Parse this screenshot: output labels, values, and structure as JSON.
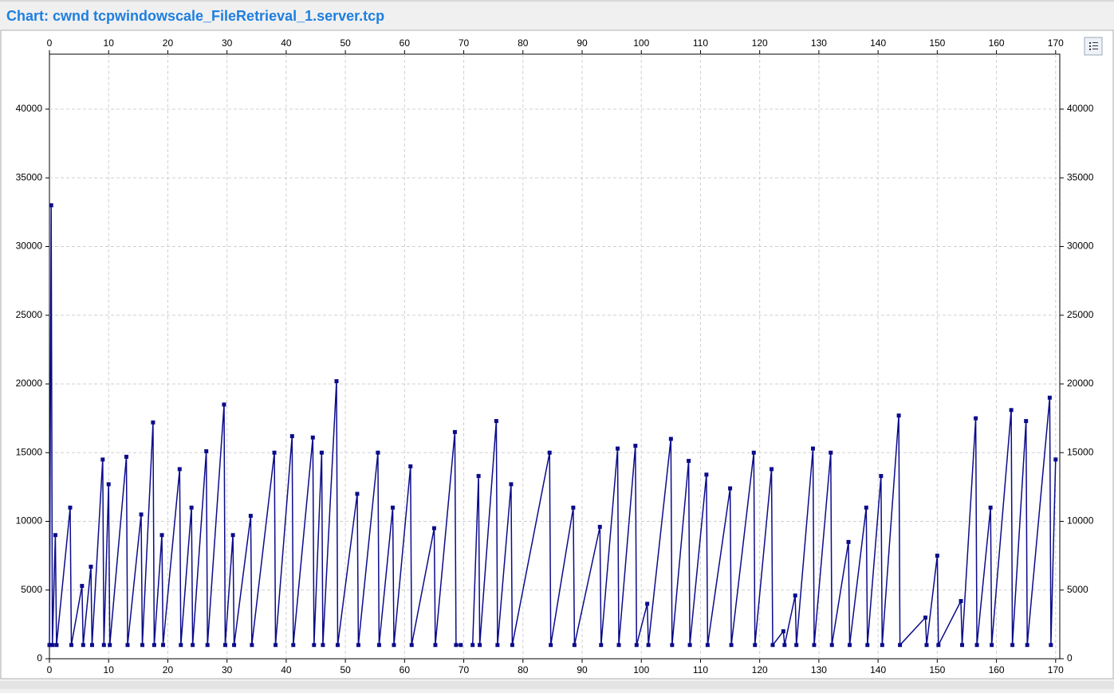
{
  "chart_data": {
    "type": "line",
    "title": "Chart: cwnd tcpwindowscale_FileRetrieval_1.server.tcp",
    "x": [
      0,
      0.3,
      0.5,
      1,
      1.2,
      3.5,
      3.7,
      5.5,
      5.7,
      7,
      7.2,
      9,
      9.2,
      10,
      10.2,
      13,
      13.2,
      15.5,
      15.7,
      17.5,
      17.7,
      19,
      19.2,
      22,
      22.2,
      24,
      24.2,
      26.5,
      26.7,
      29.5,
      29.7,
      31,
      31.2,
      34,
      34.2,
      38,
      38.2,
      41,
      41.2,
      44.5,
      44.7,
      46,
      46.2,
      48.5,
      48.7,
      52,
      52.2,
      55.5,
      55.7,
      58,
      58.2,
      61,
      61.2,
      65,
      65.2,
      68.5,
      68.7,
      69.5,
      70.5,
      71.5,
      72.5,
      72.7,
      75.5,
      75.7,
      78,
      78.2,
      84.5,
      84.7,
      88.5,
      88.7,
      93,
      93.2,
      96,
      96.2,
      99,
      99.2,
      101,
      101.2,
      105,
      105.2,
      108,
      108.2,
      111,
      111.2,
      115,
      115.2,
      119,
      119.2,
      122,
      122.2,
      124,
      124.2,
      126,
      126.2,
      129,
      129.2,
      132,
      132.2,
      135,
      135.2,
      138,
      138.2,
      140.5,
      140.7,
      143.5,
      143.7,
      148,
      148.2,
      150,
      150.2,
      154,
      154.2,
      156.5,
      156.7,
      159,
      159.2,
      162.5,
      162.7,
      165,
      165.2,
      169,
      169.2,
      170
    ],
    "series": [
      {
        "name": "cwnd",
        "color": "#0b0b8a",
        "values": [
          1000,
          33000,
          1000,
          9000,
          1000,
          11000,
          1000,
          5300,
          1000,
          6700,
          1000,
          14500,
          1000,
          12700,
          1000,
          14700,
          1000,
          10500,
          1000,
          17200,
          1000,
          9000,
          1000,
          13800,
          1000,
          11000,
          1000,
          15100,
          1000,
          18500,
          1000,
          9000,
          1000,
          10400,
          1000,
          15000,
          1000,
          16200,
          1000,
          16100,
          1000,
          15000,
          1000,
          20200,
          1000,
          12000,
          1000,
          15000,
          1000,
          11000,
          1000,
          14000,
          1000,
          9500,
          1000,
          16500,
          1000,
          1000,
          null,
          1000,
          13300,
          1000,
          17300,
          1000,
          12700,
          1000,
          15000,
          1000,
          11000,
          1000,
          9600,
          1000,
          15300,
          1000,
          15500,
          1000,
          4000,
          1000,
          16000,
          1000,
          14400,
          1000,
          13400,
          1000,
          12400,
          1000,
          15000,
          1000,
          13800,
          1000,
          2000,
          1000,
          4600,
          1000,
          15300,
          1000,
          15000,
          1000,
          8500,
          1000,
          11000,
          1000,
          13300,
          1000,
          17700,
          1000,
          3000,
          1000,
          7500,
          1000,
          4200,
          1000,
          17500,
          1000,
          11000,
          1000,
          18100,
          1000,
          17300,
          1000,
          19000,
          1000,
          14500
        ]
      }
    ],
    "xlim": [
      0,
      170.7
    ],
    "xticks": [
      0,
      10,
      20,
      30,
      40,
      50,
      60,
      70,
      80,
      90,
      100,
      110,
      120,
      130,
      140,
      150,
      160,
      170
    ],
    "ylim": [
      0,
      44000
    ],
    "yticks": [
      0,
      5000,
      10000,
      15000,
      20000,
      25000,
      30000,
      35000,
      40000
    ],
    "grid": true
  }
}
